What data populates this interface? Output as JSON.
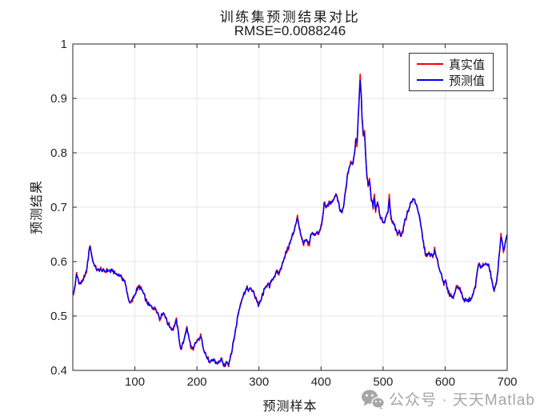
{
  "figure": {
    "title": "训练集预测结果对比",
    "subtitle": "RMSE=0.0088246",
    "xlabel": "预测样本",
    "ylabel": "预测结果",
    "background": "#ffffff",
    "axis_color": "#262626",
    "grid_color": "#e6e6e6"
  },
  "legend": {
    "position": "northeast",
    "entries": [
      {
        "label": "真实值",
        "color": "#FF0000"
      },
      {
        "label": "预测值",
        "color": "#0000FF"
      }
    ]
  },
  "watermark": {
    "icon": "wechat-icon",
    "text": "公众号 · 天天Matlab",
    "color": "#a6a6a6"
  },
  "chart_data": {
    "type": "line",
    "title": "训练集预测结果对比",
    "subtitle": "RMSE=0.0088246",
    "xlabel": "预测样本",
    "ylabel": "预测结果",
    "xlim": [
      0,
      700
    ],
    "ylim": [
      0.4,
      1.0
    ],
    "x_ticks": [
      100,
      200,
      300,
      400,
      500,
      600,
      700
    ],
    "y_ticks": [
      0.4,
      0.5,
      0.6,
      0.7,
      0.8,
      0.9,
      1
    ],
    "grid": true,
    "legend_position": "northeast",
    "x": [
      1,
      4,
      6,
      8,
      11,
      14,
      17,
      20,
      23,
      25,
      27,
      29,
      31,
      34,
      37,
      40,
      44,
      48,
      52,
      56,
      60,
      64,
      68,
      72,
      76,
      80,
      83,
      86,
      89,
      92,
      95,
      98,
      101,
      104,
      107,
      110,
      113,
      116,
      119,
      122,
      125,
      128,
      131,
      134,
      137,
      140,
      143,
      146,
      149,
      152,
      155,
      158,
      161,
      164,
      167,
      170,
      172,
      174,
      176,
      178,
      181,
      184,
      186,
      188,
      191,
      194,
      197,
      200,
      203,
      206,
      209,
      212,
      215,
      218,
      221,
      224,
      227,
      230,
      233,
      236,
      239,
      242,
      245,
      248,
      251,
      254,
      257,
      260,
      263,
      266,
      269,
      272,
      275,
      278,
      281,
      284,
      287,
      290,
      293,
      296,
      299,
      302,
      305,
      308,
      311,
      314,
      317,
      320,
      323,
      326,
      329,
      332,
      335,
      338,
      341,
      344,
      347,
      350,
      353,
      356,
      359,
      362,
      364,
      366,
      368,
      370,
      372,
      375,
      378,
      381,
      384,
      387,
      390,
      393,
      396,
      399,
      402,
      405,
      408,
      411,
      414,
      417,
      420,
      424,
      427,
      430,
      433,
      436,
      439,
      442,
      445,
      448,
      451,
      454,
      456,
      458,
      460,
      462,
      463,
      465,
      466,
      468,
      470,
      472,
      474,
      476,
      478,
      481,
      484,
      486,
      488,
      491,
      493,
      495,
      497,
      499,
      501,
      503,
      505,
      508,
      510,
      512,
      514,
      516,
      518,
      521,
      523,
      526,
      529,
      532,
      535,
      538,
      541,
      544,
      547,
      550,
      553,
      556,
      559,
      562,
      565,
      568,
      571,
      574,
      577,
      580,
      583,
      586,
      589,
      592,
      595,
      598,
      601,
      604,
      607,
      610,
      613,
      616,
      619,
      622,
      625,
      628,
      631,
      634,
      637,
      640,
      643,
      646,
      649,
      652,
      655,
      658,
      661,
      664,
      667,
      670,
      673,
      676,
      679,
      682,
      685,
      688,
      690,
      692,
      694,
      696,
      698,
      700
    ],
    "series": [
      {
        "name": "真实值",
        "color": "#FF0000",
        "role": "actual",
        "y": [
          0.54,
          0.558,
          0.576,
          0.57,
          0.559,
          0.562,
          0.568,
          0.574,
          0.59,
          0.607,
          0.628,
          0.622,
          0.608,
          0.596,
          0.588,
          0.584,
          0.586,
          0.583,
          0.582,
          0.584,
          0.582,
          0.583,
          0.578,
          0.576,
          0.574,
          0.569,
          0.565,
          0.552,
          0.535,
          0.523,
          0.527,
          0.535,
          0.543,
          0.549,
          0.553,
          0.551,
          0.544,
          0.536,
          0.526,
          0.521,
          0.518,
          0.516,
          0.514,
          0.513,
          0.506,
          0.494,
          0.502,
          0.505,
          0.5,
          0.489,
          0.483,
          0.478,
          0.475,
          0.483,
          0.492,
          0.47,
          0.453,
          0.438,
          0.444,
          0.452,
          0.466,
          0.477,
          0.466,
          0.455,
          0.442,
          0.438,
          0.448,
          0.453,
          0.458,
          0.462,
          0.45,
          0.436,
          0.427,
          0.42,
          0.413,
          0.417,
          0.42,
          0.414,
          0.412,
          0.416,
          0.421,
          0.412,
          0.408,
          0.418,
          0.411,
          0.425,
          0.441,
          0.46,
          0.48,
          0.501,
          0.517,
          0.529,
          0.538,
          0.546,
          0.552,
          0.547,
          0.551,
          0.545,
          0.538,
          0.531,
          0.52,
          0.524,
          0.536,
          0.545,
          0.555,
          0.558,
          0.553,
          0.565,
          0.57,
          0.575,
          0.583,
          0.578,
          0.585,
          0.6,
          0.605,
          0.618,
          0.625,
          0.634,
          0.645,
          0.655,
          0.668,
          0.68,
          0.67,
          0.655,
          0.645,
          0.637,
          0.632,
          0.64,
          0.636,
          0.633,
          0.65,
          0.652,
          0.65,
          0.654,
          0.65,
          0.66,
          0.675,
          0.706,
          0.7,
          0.703,
          0.71,
          0.706,
          0.715,
          0.723,
          0.713,
          0.696,
          0.691,
          0.698,
          0.725,
          0.752,
          0.772,
          0.781,
          0.78,
          0.8,
          0.825,
          0.817,
          0.868,
          0.913,
          0.938,
          0.903,
          0.865,
          0.831,
          0.841,
          0.792,
          0.758,
          0.741,
          0.749,
          0.716,
          0.701,
          0.72,
          0.696,
          0.71,
          0.698,
          0.685,
          0.68,
          0.677,
          0.67,
          0.675,
          0.683,
          0.692,
          0.715,
          0.688,
          0.675,
          0.67,
          0.668,
          0.657,
          0.65,
          0.656,
          0.649,
          0.657,
          0.675,
          0.685,
          0.695,
          0.706,
          0.712,
          0.714,
          0.707,
          0.697,
          0.678,
          0.658,
          0.635,
          0.616,
          0.61,
          0.615,
          0.612,
          0.61,
          0.62,
          0.607,
          0.595,
          0.582,
          0.573,
          0.56,
          0.563,
          0.548,
          0.54,
          0.537,
          0.533,
          0.546,
          0.555,
          0.552,
          0.546,
          0.535,
          0.529,
          0.53,
          0.528,
          0.531,
          0.534,
          0.545,
          0.556,
          0.585,
          0.595,
          0.588,
          0.593,
          0.596,
          0.595,
          0.592,
          0.58,
          0.56,
          0.547,
          0.558,
          0.585,
          0.62,
          0.65,
          0.638,
          0.618,
          0.628,
          0.64,
          0.648
        ]
      },
      {
        "name": "预测值",
        "color": "#0000FF",
        "role": "predicted",
        "y": [
          0.54,
          0.558,
          0.576,
          0.57,
          0.559,
          0.562,
          0.568,
          0.574,
          0.59,
          0.607,
          0.628,
          0.622,
          0.608,
          0.596,
          0.588,
          0.584,
          0.586,
          0.583,
          0.582,
          0.584,
          0.582,
          0.583,
          0.578,
          0.576,
          0.574,
          0.569,
          0.565,
          0.552,
          0.535,
          0.523,
          0.527,
          0.535,
          0.543,
          0.549,
          0.553,
          0.551,
          0.544,
          0.536,
          0.526,
          0.521,
          0.518,
          0.516,
          0.514,
          0.513,
          0.506,
          0.494,
          0.502,
          0.505,
          0.5,
          0.489,
          0.483,
          0.478,
          0.475,
          0.483,
          0.492,
          0.47,
          0.453,
          0.438,
          0.444,
          0.452,
          0.466,
          0.477,
          0.466,
          0.455,
          0.442,
          0.438,
          0.448,
          0.453,
          0.458,
          0.462,
          0.45,
          0.436,
          0.427,
          0.42,
          0.413,
          0.417,
          0.42,
          0.414,
          0.412,
          0.416,
          0.421,
          0.412,
          0.408,
          0.418,
          0.411,
          0.425,
          0.441,
          0.46,
          0.48,
          0.501,
          0.517,
          0.529,
          0.538,
          0.546,
          0.552,
          0.547,
          0.551,
          0.545,
          0.538,
          0.531,
          0.52,
          0.524,
          0.536,
          0.545,
          0.555,
          0.558,
          0.553,
          0.565,
          0.57,
          0.575,
          0.583,
          0.578,
          0.585,
          0.6,
          0.605,
          0.618,
          0.625,
          0.634,
          0.645,
          0.655,
          0.668,
          0.68,
          0.67,
          0.655,
          0.645,
          0.637,
          0.632,
          0.64,
          0.636,
          0.633,
          0.65,
          0.652,
          0.65,
          0.654,
          0.65,
          0.66,
          0.675,
          0.706,
          0.7,
          0.703,
          0.71,
          0.706,
          0.715,
          0.723,
          0.713,
          0.696,
          0.691,
          0.698,
          0.725,
          0.752,
          0.772,
          0.781,
          0.78,
          0.8,
          0.825,
          0.817,
          0.868,
          0.913,
          0.938,
          0.903,
          0.865,
          0.831,
          0.841,
          0.792,
          0.758,
          0.741,
          0.749,
          0.716,
          0.701,
          0.72,
          0.696,
          0.71,
          0.698,
          0.685,
          0.68,
          0.677,
          0.67,
          0.675,
          0.683,
          0.692,
          0.715,
          0.688,
          0.675,
          0.67,
          0.668,
          0.657,
          0.65,
          0.656,
          0.649,
          0.657,
          0.675,
          0.685,
          0.695,
          0.706,
          0.712,
          0.714,
          0.707,
          0.697,
          0.678,
          0.658,
          0.635,
          0.616,
          0.61,
          0.615,
          0.612,
          0.61,
          0.62,
          0.607,
          0.595,
          0.582,
          0.573,
          0.56,
          0.563,
          0.548,
          0.54,
          0.537,
          0.533,
          0.546,
          0.555,
          0.552,
          0.546,
          0.535,
          0.529,
          0.53,
          0.528,
          0.531,
          0.534,
          0.545,
          0.556,
          0.585,
          0.595,
          0.588,
          0.593,
          0.596,
          0.595,
          0.592,
          0.58,
          0.56,
          0.547,
          0.558,
          0.585,
          0.62,
          0.65,
          0.638,
          0.618,
          0.628,
          0.64,
          0.648
        ]
      }
    ]
  }
}
